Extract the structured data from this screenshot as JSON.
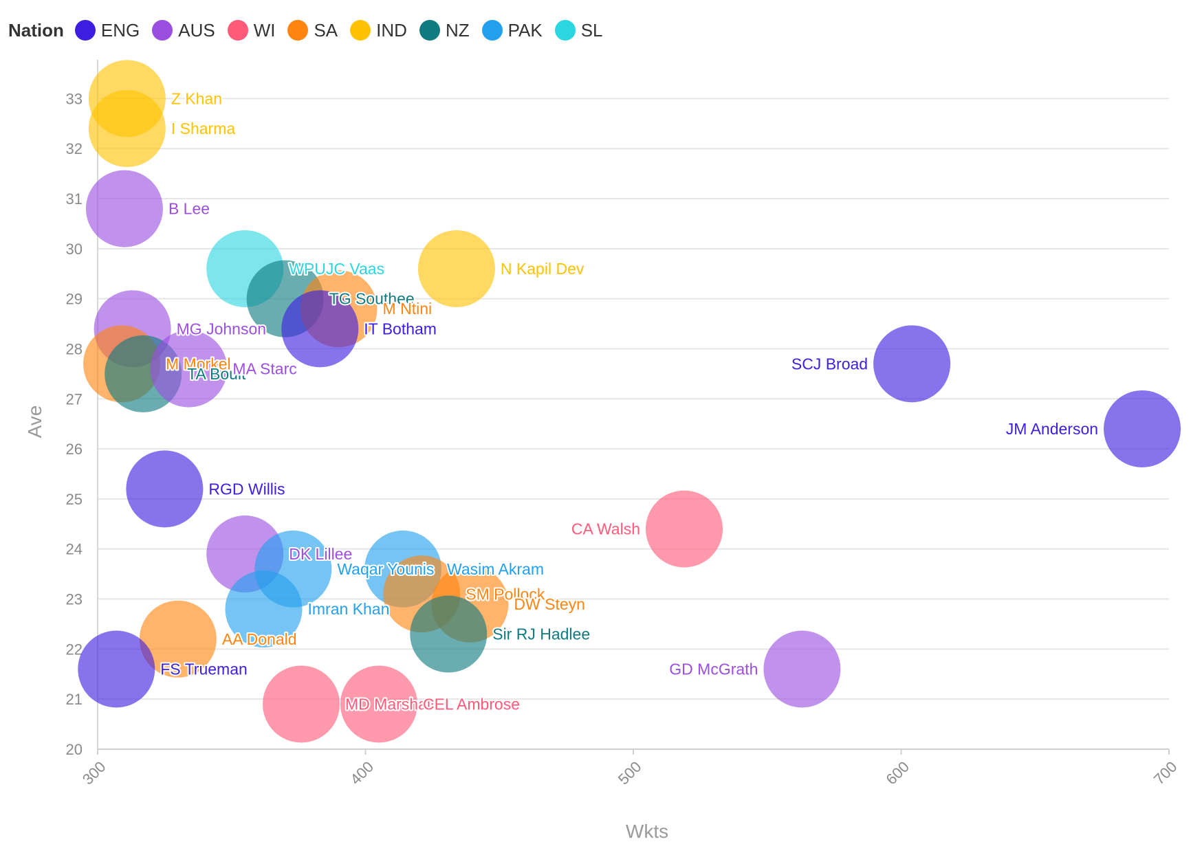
{
  "chart_data": {
    "type": "scatter",
    "bubble": true,
    "xlabel": "Wkts",
    "ylabel": "Ave",
    "xlim": [
      300,
      700
    ],
    "ylim": [
      20,
      33.5
    ],
    "x_ticks": [
      300,
      400,
      500,
      600,
      700
    ],
    "y_ticks": [
      20,
      21,
      22,
      23,
      24,
      25,
      26,
      27,
      28,
      29,
      30,
      31,
      32,
      33
    ],
    "grid": "horizontal",
    "legend": {
      "title": "Nation",
      "position": "top-left",
      "items": [
        {
          "key": "ENG",
          "label": "ENG",
          "color": "#3d1ee0"
        },
        {
          "key": "AUS",
          "label": "AUS",
          "color": "#9b4fe0"
        },
        {
          "key": "WI",
          "label": "WI",
          "color": "#ff5a78"
        },
        {
          "key": "SA",
          "label": "SA",
          "color": "#ff8410"
        },
        {
          "key": "IND",
          "label": "IND",
          "color": "#ffc200"
        },
        {
          "key": "NZ",
          "label": "NZ",
          "color": "#0f7a80"
        },
        {
          "key": "PAK",
          "label": "PAK",
          "color": "#22a0ee"
        },
        {
          "key": "SL",
          "label": "SL",
          "color": "#2bd6e0"
        }
      ]
    },
    "points": [
      {
        "name": "Z Khan",
        "nation": "IND",
        "x": 311,
        "y": 33.0,
        "label_side": "right"
      },
      {
        "name": "I Sharma",
        "nation": "IND",
        "x": 311,
        "y": 32.4,
        "label_side": "right"
      },
      {
        "name": "B Lee",
        "nation": "AUS",
        "x": 310,
        "y": 30.8,
        "label_side": "right"
      },
      {
        "name": "WPUJC Vaas",
        "nation": "SL",
        "x": 355,
        "y": 29.6,
        "label_side": "right"
      },
      {
        "name": "TG Southee",
        "nation": "NZ",
        "x": 370,
        "y": 29.0,
        "label_side": "right"
      },
      {
        "name": "M Ntini",
        "nation": "SA",
        "x": 390,
        "y": 28.8,
        "label_side": "right"
      },
      {
        "name": "N Kapil Dev",
        "nation": "IND",
        "x": 434,
        "y": 29.6,
        "label_side": "right"
      },
      {
        "name": "IT Botham",
        "nation": "ENG",
        "x": 383,
        "y": 28.4,
        "label_side": "right"
      },
      {
        "name": "MG Johnson",
        "nation": "AUS",
        "x": 313,
        "y": 28.4,
        "label_side": "right"
      },
      {
        "name": "M Morkel",
        "nation": "SA",
        "x": 309,
        "y": 27.7,
        "label_side": "right"
      },
      {
        "name": "TA Boult",
        "nation": "NZ",
        "x": 317,
        "y": 27.5,
        "label_side": "right"
      },
      {
        "name": "MA Starc",
        "nation": "AUS",
        "x": 334,
        "y": 27.6,
        "label_side": "right"
      },
      {
        "name": "SCJ Broad",
        "nation": "ENG",
        "x": 604,
        "y": 27.7,
        "label_side": "left"
      },
      {
        "name": "JM Anderson",
        "nation": "ENG",
        "x": 690,
        "y": 26.4,
        "label_side": "left"
      },
      {
        "name": "RGD Willis",
        "nation": "ENG",
        "x": 325,
        "y": 25.2,
        "label_side": "right"
      },
      {
        "name": "CA Walsh",
        "nation": "WI",
        "x": 519,
        "y": 24.4,
        "label_side": "left"
      },
      {
        "name": "DK Lillee",
        "nation": "AUS",
        "x": 355,
        "y": 23.9,
        "label_side": "right"
      },
      {
        "name": "Waqar Younis",
        "nation": "PAK",
        "x": 373,
        "y": 23.6,
        "label_side": "right"
      },
      {
        "name": "Wasim Akram",
        "nation": "PAK",
        "x": 414,
        "y": 23.6,
        "label_side": "right"
      },
      {
        "name": "SM Pollock",
        "nation": "SA",
        "x": 421,
        "y": 23.1,
        "label_side": "right"
      },
      {
        "name": "DW Steyn",
        "nation": "SA",
        "x": 439,
        "y": 22.9,
        "label_side": "right"
      },
      {
        "name": "Imran Khan",
        "nation": "PAK",
        "x": 362,
        "y": 22.8,
        "label_side": "right"
      },
      {
        "name": "Sir RJ Hadlee",
        "nation": "NZ",
        "x": 431,
        "y": 22.3,
        "label_side": "right"
      },
      {
        "name": "AA Donald",
        "nation": "SA",
        "x": 330,
        "y": 22.2,
        "label_side": "right"
      },
      {
        "name": "GD McGrath",
        "nation": "AUS",
        "x": 563,
        "y": 21.6,
        "label_side": "left"
      },
      {
        "name": "FS Trueman",
        "nation": "ENG",
        "x": 307,
        "y": 21.6,
        "label_side": "right"
      },
      {
        "name": "MD Marshall",
        "nation": "WI",
        "x": 376,
        "y": 20.9,
        "label_side": "right"
      },
      {
        "name": "CEL Ambrose",
        "nation": "WI",
        "x": 405,
        "y": 20.9,
        "label_side": "right"
      }
    ]
  }
}
